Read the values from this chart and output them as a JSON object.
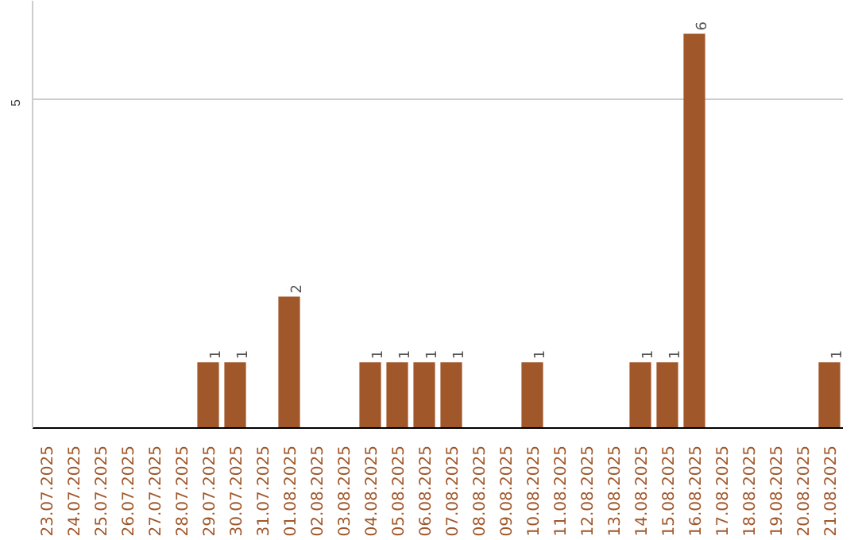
{
  "chart_data": {
    "type": "bar",
    "categories": [
      "23.07.2025",
      "24.07.2025",
      "25.07.2025",
      "26.07.2025",
      "27.07.2025",
      "28.07.2025",
      "29.07.2025",
      "30.07.2025",
      "31.07.2025",
      "01.08.2025",
      "02.08.2025",
      "03.08.2025",
      "04.08.2025",
      "05.08.2025",
      "06.08.2025",
      "07.08.2025",
      "08.08.2025",
      "09.08.2025",
      "10.08.2025",
      "11.08.2025",
      "12.08.2025",
      "13.08.2025",
      "14.08.2025",
      "15.08.2025",
      "16.08.2025",
      "17.08.2025",
      "18.08.2025",
      "19.08.2025",
      "20.08.2025",
      "21.08.2025"
    ],
    "values": [
      0,
      0,
      0,
      0,
      0,
      0,
      1,
      1,
      0,
      2,
      0,
      0,
      1,
      1,
      1,
      1,
      0,
      0,
      1,
      0,
      0,
      0,
      1,
      1,
      6,
      0,
      0,
      0,
      0,
      1
    ],
    "value_labels": [
      null,
      null,
      null,
      null,
      null,
      null,
      "1",
      "1",
      null,
      "2",
      null,
      null,
      "1",
      "1",
      "1",
      "1",
      null,
      null,
      "1",
      null,
      null,
      null,
      "1",
      "1",
      "6",
      null,
      null,
      null,
      null,
      "1"
    ],
    "color": "#a0572a",
    "ylim": [
      0,
      6.5
    ],
    "yticks": [
      5
    ],
    "grid": "y"
  }
}
